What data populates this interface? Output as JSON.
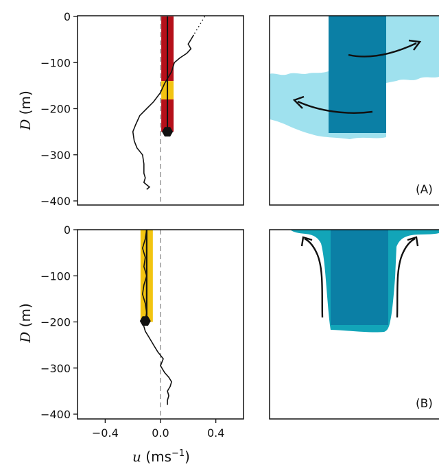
{
  "chart_data": [
    {
      "type": "line",
      "panel": "top",
      "ylabel": "D (m)",
      "ylim": [
        -410,
        0
      ],
      "xlim": [
        -0.6,
        0.6
      ],
      "yticks": [
        0,
        -100,
        -200,
        -300,
        -400
      ],
      "ytick_labels": [
        "0",
        "−100",
        "−200",
        "−300",
        "−400"
      ],
      "reference_line_x": 0.0,
      "profile": {
        "x": [
          0.32,
          0.3,
          0.28,
          0.26,
          0.24,
          0.22,
          0.2,
          0.22,
          0.19,
          0.14,
          0.1,
          0.09,
          0.08,
          0.06,
          0.03,
          0.0,
          -0.05,
          -0.1,
          -0.15,
          -0.18,
          -0.2,
          -0.19,
          -0.17,
          -0.13,
          -0.12,
          -0.12,
          -0.11,
          -0.12,
          -0.1,
          -0.08,
          -0.1
        ],
        "y": [
          0,
          -10,
          -20,
          -30,
          -40,
          -50,
          -60,
          -70,
          -80,
          -90,
          -100,
          -110,
          -120,
          -130,
          -145,
          -165,
          -185,
          -200,
          -215,
          -235,
          -250,
          -270,
          -285,
          -300,
          -320,
          -340,
          -350,
          -360,
          -365,
          -370,
          -375
        ]
      },
      "drifter_path": {
        "x": 0.05,
        "y_top": 0,
        "y_bottom": -250
      },
      "bar_segments": [
        {
          "from": 0,
          "to": -140,
          "color": "#b5101a"
        },
        {
          "from": -140,
          "to": -180,
          "color": "#f2c411"
        },
        {
          "from": -180,
          "to": -250,
          "color": "#b5101a"
        }
      ],
      "bottom_marker": {
        "x": 0.05,
        "y": -250
      }
    },
    {
      "type": "line",
      "panel": "bottom",
      "ylabel": "D (m)",
      "xlabel": "u (ms⁻¹)",
      "ylim": [
        -410,
        0
      ],
      "xlim": [
        -0.6,
        0.6
      ],
      "xticks": [
        -0.4,
        0.0,
        0.4
      ],
      "xtick_labels": [
        "−0.4",
        "0.0",
        "0.4"
      ],
      "yticks": [
        0,
        -100,
        -200,
        -300,
        -400
      ],
      "ytick_labels": [
        "0",
        "−100",
        "−200",
        "−300",
        "−400"
      ],
      "reference_line_x": 0.0,
      "profile": {
        "x": [
          -0.1,
          -0.11,
          -0.13,
          -0.11,
          -0.12,
          -0.1,
          -0.12,
          -0.13,
          -0.11,
          -0.1,
          -0.11,
          -0.13,
          -0.12,
          -0.11,
          -0.08,
          -0.05,
          -0.02,
          0.02,
          0.0,
          0.03,
          0.06,
          0.08,
          0.07,
          0.05,
          0.06,
          0.05,
          0.05
        ],
        "y": [
          0,
          -20,
          -40,
          -60,
          -80,
          -100,
          -120,
          -140,
          -160,
          -180,
          -195,
          -200,
          -210,
          -220,
          -235,
          -250,
          -265,
          -280,
          -295,
          -310,
          -320,
          -330,
          -340,
          -350,
          -360,
          -370,
          -380
        ]
      },
      "drifter_path": {
        "x": -0.1,
        "y_top": 0,
        "y_bottom": -200
      },
      "bar_segments": [
        {
          "from": 0,
          "to": -200,
          "color": "#f2c411"
        }
      ],
      "bottom_marker": {
        "x": -0.11,
        "y": -198
      }
    }
  ],
  "panels": {
    "top_label": "(A)",
    "bottom_label": "(B)"
  },
  "colors": {
    "dark_teal": "#0b7fa5",
    "light_cyan": "#9fe1ee",
    "mid_teal": "#12a5b8",
    "red": "#b5101a",
    "yellow": "#f2c411"
  }
}
